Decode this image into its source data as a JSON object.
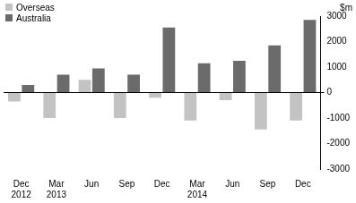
{
  "chart_data": {
    "type": "bar",
    "y_label": "$m",
    "categories": [
      "Dec 2012",
      "Mar 2013",
      "Jun",
      "Sep",
      "Dec",
      "Mar 2014",
      "Jun",
      "Sep",
      "Dec"
    ],
    "series": [
      {
        "name": "Overseas",
        "color": "#c3c3c3",
        "values": [
          -350,
          -1000,
          500,
          -1000,
          -200,
          -1100,
          -300,
          -1450,
          -1100
        ]
      },
      {
        "name": "Australia",
        "color": "#6b6b6b",
        "values": [
          300,
          700,
          950,
          700,
          2550,
          1150,
          1250,
          1850,
          2850
        ]
      }
    ],
    "ylim": [
      -3000,
      3000
    ],
    "yticks": [
      -3000,
      -2000,
      -1000,
      0,
      1000,
      2000,
      3000
    ],
    "grid": false,
    "legend": "upper left"
  }
}
